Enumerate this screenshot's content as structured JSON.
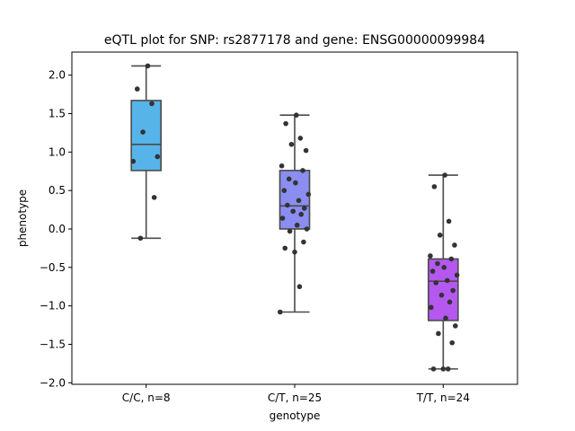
{
  "chart_data": {
    "type": "box",
    "title": "eQTL plot for SNP: rs2877178 and gene: ENSG00000099984",
    "xlabel": "genotype",
    "ylabel": "phenotype",
    "ylim": [
      -2.02,
      2.3
    ],
    "yticks": [
      -2.0,
      -1.5,
      -1.0,
      -0.5,
      0.0,
      0.5,
      1.0,
      1.5,
      2.0
    ],
    "ytick_labels": [
      "−2.0",
      "−1.5",
      "−1.0",
      "−0.5",
      "0.0",
      "0.5",
      "1.0",
      "1.5",
      "2.0"
    ],
    "grid": false,
    "categories": [
      "C/C, n=8",
      "C/T, n=25",
      "T/T, n=24"
    ],
    "boxes": [
      {
        "category": "C/C, n=8",
        "color": "#56b4e9",
        "q1": 0.76,
        "median": 1.1,
        "q3": 1.67,
        "whisker_low": -0.12,
        "whisker_high": 2.12,
        "points": [
          2.12,
          1.82,
          1.63,
          1.26,
          0.94,
          0.88,
          0.41,
          -0.12
        ]
      },
      {
        "category": "C/T, n=25",
        "color": "#8b8ef0",
        "q1": 0.0,
        "median": 0.3,
        "q3": 0.76,
        "whisker_low": -1.08,
        "whisker_high": 1.48,
        "points": [
          1.48,
          1.37,
          1.18,
          1.1,
          1.02,
          0.82,
          0.76,
          0.65,
          0.6,
          0.5,
          0.45,
          0.37,
          0.31,
          0.27,
          0.23,
          0.19,
          0.14,
          0.05,
          0.0,
          -0.03,
          -0.17,
          -0.25,
          -0.3,
          -0.75,
          -1.08
        ]
      },
      {
        "category": "T/T, n=24",
        "color": "#b558f0",
        "q1": -1.19,
        "median": -0.68,
        "q3": -0.39,
        "whisker_low": -1.82,
        "whisker_high": 0.7,
        "points": [
          0.7,
          0.55,
          0.1,
          -0.08,
          -0.21,
          -0.35,
          -0.39,
          -0.45,
          -0.5,
          -0.55,
          -0.6,
          -0.67,
          -0.7,
          -0.8,
          -0.86,
          -0.95,
          -1.02,
          -1.16,
          -1.26,
          -1.36,
          -1.48,
          -1.82,
          -1.82,
          -1.82
        ]
      }
    ]
  }
}
